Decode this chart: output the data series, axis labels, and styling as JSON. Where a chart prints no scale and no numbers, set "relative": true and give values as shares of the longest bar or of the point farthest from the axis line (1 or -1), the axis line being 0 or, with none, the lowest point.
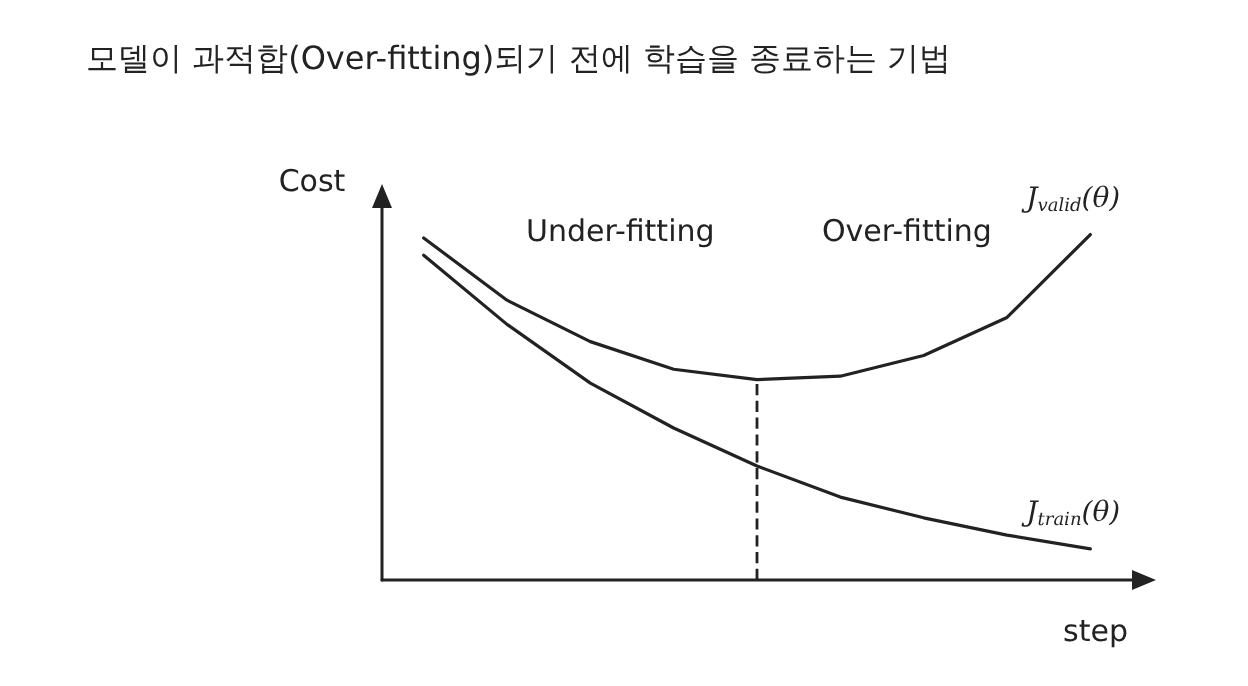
{
  "chart_data": {
    "type": "line",
    "title": "모델이 과적합(Over-fitting)되기 전에 학습을 종료하는 기법",
    "xlabel": "step",
    "ylabel": "Cost",
    "relative": true,
    "categories": [
      null,
      null,
      null,
      null,
      null,
      null,
      null,
      null,
      null
    ],
    "series": [
      {
        "name": "J$_{valid}$(θ)",
        "color": "#222222",
        "values": [
          0.99,
          0.81,
          0.69,
          0.61,
          0.58,
          0.59,
          0.65,
          0.76,
          1.0
        ]
      },
      {
        "name": "J$_{train}$(θ)",
        "color": "#222222",
        "values": [
          0.94,
          0.74,
          0.57,
          0.44,
          0.33,
          0.24,
          0.18,
          0.13,
          0.09
        ]
      }
    ],
    "annotations": [
      "Under-fitting",
      "Over-fitting"
    ],
    "grid": false,
    "legend": false,
    "marker": "none",
    "line_style": "solid"
  }
}
